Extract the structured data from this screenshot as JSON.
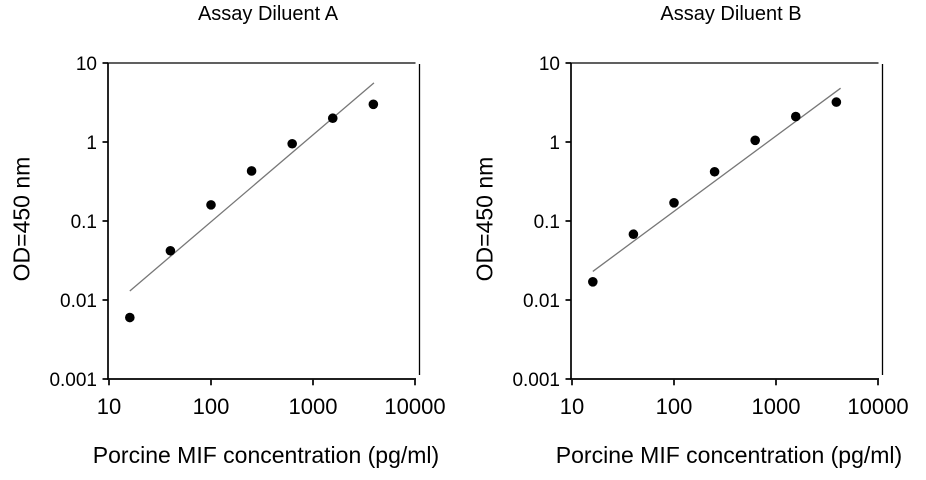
{
  "figure": {
    "background": "#ffffff",
    "text_color": "#000000",
    "axis_color": "#000000",
    "point_color": "#000000",
    "fit_line_color": "#777777"
  },
  "chart_data": [
    {
      "type": "scatter",
      "title": "Assay Diluent A",
      "xlabel": "Porcine MIF concentration (pg/ml)",
      "ylabel": "OD=450 nm",
      "x_scale": "log",
      "y_scale": "log",
      "xlim": [
        10,
        10000
      ],
      "ylim": [
        0.001,
        10
      ],
      "grid": false,
      "legend": null,
      "x_ticks": [
        10,
        100,
        1000,
        10000
      ],
      "x_tick_labels": [
        "10",
        "100",
        "1000",
        "10000"
      ],
      "y_ticks": [
        10,
        1,
        0.1,
        0.01,
        0.001
      ],
      "y_tick_labels": [
        "10",
        "1",
        "0.1",
        "0.01",
        "0.001"
      ],
      "points": {
        "x": [
          16,
          40,
          100,
          250,
          625,
          1562,
          3906
        ],
        "y": [
          0.006,
          0.042,
          0.16,
          0.43,
          0.95,
          2.0,
          3.0
        ]
      },
      "fit_line": {
        "x1": 16,
        "y1": 0.013,
        "x2": 3960,
        "y2": 5.6
      }
    },
    {
      "type": "scatter",
      "title": "Assay Diluent B",
      "xlabel": "Porcine MIF concentration (pg/ml)",
      "ylabel": "OD=450 nm",
      "x_scale": "log",
      "y_scale": "log",
      "xlim": [
        10,
        10000
      ],
      "ylim": [
        0.001,
        10
      ],
      "grid": false,
      "legend": null,
      "x_ticks": [
        10,
        100,
        1000,
        10000
      ],
      "x_tick_labels": [
        "10",
        "100",
        "1000",
        "10000"
      ],
      "y_ticks": [
        10,
        1,
        0.1,
        0.01,
        0.001
      ],
      "y_tick_labels": [
        "10",
        "1",
        "0.1",
        "0.01",
        "0.001"
      ],
      "points": {
        "x": [
          16,
          40,
          100,
          250,
          625,
          1562,
          3906
        ],
        "y": [
          0.017,
          0.068,
          0.17,
          0.42,
          1.05,
          2.1,
          3.2
        ]
      },
      "fit_line": {
        "x1": 16,
        "y1": 0.023,
        "x2": 4300,
        "y2": 4.8
      }
    }
  ]
}
